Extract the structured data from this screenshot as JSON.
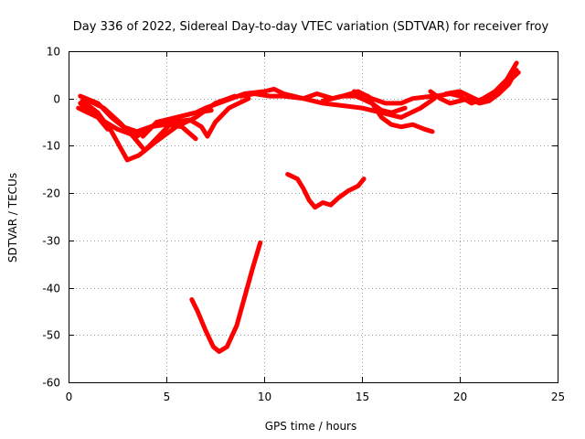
{
  "chart_data": {
    "type": "line",
    "title": "Day 336 of 2022, Sidereal Day-to-day VTEC variation (SDTVAR) for receiver froy",
    "xlabel": "GPS time / hours",
    "ylabel": "SDTVAR / TECUs",
    "xlim": [
      0,
      25
    ],
    "ylim": [
      -60,
      10
    ],
    "xticks": [
      "0",
      "5",
      "10",
      "15",
      "20",
      "25"
    ],
    "yticks": [
      "10",
      "0",
      "-10",
      "-20",
      "-30",
      "-40",
      "-50",
      "-60"
    ],
    "grid": true,
    "color": "#ff0000",
    "series": [
      {
        "name": "track-1",
        "points": [
          [
            0.6,
            0.5
          ],
          [
            1.5,
            -1
          ],
          [
            2.2,
            -4
          ],
          [
            2.8,
            -6
          ],
          [
            3.5,
            -7
          ],
          [
            4.5,
            -5.5
          ],
          [
            5.5,
            -4
          ],
          [
            6.5,
            -3
          ],
          [
            7.3,
            -2.5
          ]
        ]
      },
      {
        "name": "track-2",
        "points": [
          [
            0.7,
            -0.5
          ],
          [
            1.5,
            -3
          ],
          [
            2.2,
            -7
          ],
          [
            2.6,
            -10
          ],
          [
            3.0,
            -13
          ],
          [
            3.6,
            -12
          ],
          [
            4.5,
            -9
          ],
          [
            5.5,
            -6
          ],
          [
            6.5,
            -4
          ],
          [
            7.5,
            -1
          ],
          [
            8.5,
            0.5
          ]
        ]
      },
      {
        "name": "track-3",
        "points": [
          [
            0.8,
            0
          ],
          [
            1.8,
            -2
          ],
          [
            2.6,
            -5
          ],
          [
            3.3,
            -8
          ],
          [
            3.9,
            -11
          ],
          [
            4.6,
            -8
          ],
          [
            5.3,
            -5
          ],
          [
            6.2,
            -4.5
          ],
          [
            6.8,
            -6
          ],
          [
            7.1,
            -8
          ],
          [
            7.5,
            -5
          ],
          [
            8.2,
            -2
          ],
          [
            9.2,
            0
          ]
        ]
      },
      {
        "name": "track-4",
        "points": [
          [
            0.6,
            -1
          ],
          [
            1.5,
            -4
          ],
          [
            2.5,
            -6.5
          ],
          [
            3.5,
            -8
          ],
          [
            4.2,
            -6
          ],
          [
            5.0,
            -5.5
          ],
          [
            5.8,
            -6
          ],
          [
            6.5,
            -8.5
          ]
        ]
      },
      {
        "name": "track-5",
        "points": [
          [
            0.5,
            -2
          ],
          [
            1.5,
            -4
          ],
          [
            2.0,
            -6.5
          ]
        ]
      },
      {
        "name": "track-6",
        "points": [
          [
            3.8,
            -8
          ],
          [
            4.5,
            -5
          ],
          [
            5.5,
            -4
          ],
          [
            6.5,
            -3
          ],
          [
            7.0,
            -2
          ],
          [
            8.0,
            -0.5
          ],
          [
            9.0,
            1
          ],
          [
            10.0,
            1.5
          ],
          [
            10.5,
            2
          ],
          [
            11.0,
            1
          ],
          [
            12.0,
            0
          ],
          [
            13.0,
            -1
          ],
          [
            14.0,
            -1.5
          ],
          [
            15.0,
            -2
          ],
          [
            16.0,
            -3
          ],
          [
            17.0,
            -4
          ],
          [
            18.0,
            -2
          ],
          [
            18.7,
            0
          ]
        ]
      },
      {
        "name": "track-7",
        "points": [
          [
            8.8,
            0.5
          ],
          [
            9.5,
            1
          ],
          [
            10.3,
            0.5
          ],
          [
            11.0,
            0.5
          ],
          [
            12.0,
            0
          ],
          [
            12.7,
            1
          ],
          [
            13.5,
            0
          ],
          [
            14.0,
            0.5
          ],
          [
            14.7,
            0.5
          ],
          [
            15.5,
            -1
          ],
          [
            16.0,
            -2.5
          ],
          [
            16.5,
            -3
          ],
          [
            17.2,
            -2
          ]
        ]
      },
      {
        "name": "track-8",
        "points": [
          [
            13.0,
            -0.5
          ],
          [
            14.0,
            0.5
          ],
          [
            14.8,
            1.5
          ],
          [
            15.5,
            0
          ],
          [
            16.2,
            -1
          ],
          [
            17.0,
            -1
          ],
          [
            17.6,
            0
          ],
          [
            18.6,
            0.5
          ]
        ]
      },
      {
        "name": "track-9",
        "points": [
          [
            14.6,
            1.5
          ],
          [
            15.3,
            0.5
          ],
          [
            15.6,
            -1.5
          ],
          [
            16.0,
            -4
          ],
          [
            16.5,
            -5.5
          ],
          [
            17.0,
            -6
          ],
          [
            17.6,
            -5.5
          ],
          [
            18.2,
            -6.5
          ],
          [
            18.6,
            -7
          ]
        ]
      },
      {
        "name": "track-10",
        "points": [
          [
            18.5,
            1.5
          ],
          [
            19.0,
            0
          ],
          [
            19.5,
            -1
          ],
          [
            20.0,
            -0.5
          ],
          [
            20.5,
            0
          ],
          [
            21.0,
            -1
          ],
          [
            21.5,
            -0.5
          ],
          [
            22.0,
            1
          ],
          [
            22.5,
            3
          ],
          [
            22.9,
            6
          ]
        ]
      },
      {
        "name": "track-11",
        "points": [
          [
            18.8,
            0.5
          ],
          [
            19.5,
            1
          ],
          [
            20.0,
            0.5
          ],
          [
            20.6,
            -1
          ],
          [
            21.2,
            0
          ],
          [
            21.8,
            1.5
          ],
          [
            22.4,
            4
          ],
          [
            22.9,
            7.5
          ]
        ]
      },
      {
        "name": "track-12",
        "points": [
          [
            19.3,
            1
          ],
          [
            20.0,
            1.5
          ],
          [
            20.5,
            0.5
          ],
          [
            21.0,
            -0.5
          ],
          [
            21.6,
            0
          ],
          [
            22.2,
            2
          ],
          [
            22.6,
            4
          ],
          [
            23.0,
            5.5
          ]
        ]
      },
      {
        "name": "track-13",
        "points": [
          [
            11.2,
            -16
          ],
          [
            11.7,
            -17
          ],
          [
            12.0,
            -19
          ],
          [
            12.3,
            -21.5
          ],
          [
            12.6,
            -23
          ],
          [
            13.0,
            -22
          ],
          [
            13.4,
            -22.5
          ],
          [
            13.8,
            -21
          ],
          [
            14.3,
            -19.5
          ],
          [
            14.8,
            -18.5
          ],
          [
            15.1,
            -17
          ]
        ]
      },
      {
        "name": "track-14",
        "points": [
          [
            6.3,
            -42.5
          ],
          [
            6.6,
            -45
          ],
          [
            7.0,
            -49
          ],
          [
            7.4,
            -52.5
          ],
          [
            7.7,
            -53.5
          ],
          [
            8.1,
            -52.5
          ],
          [
            8.6,
            -48
          ],
          [
            9.0,
            -42
          ],
          [
            9.4,
            -36
          ],
          [
            9.8,
            -30.5
          ]
        ]
      }
    ]
  }
}
